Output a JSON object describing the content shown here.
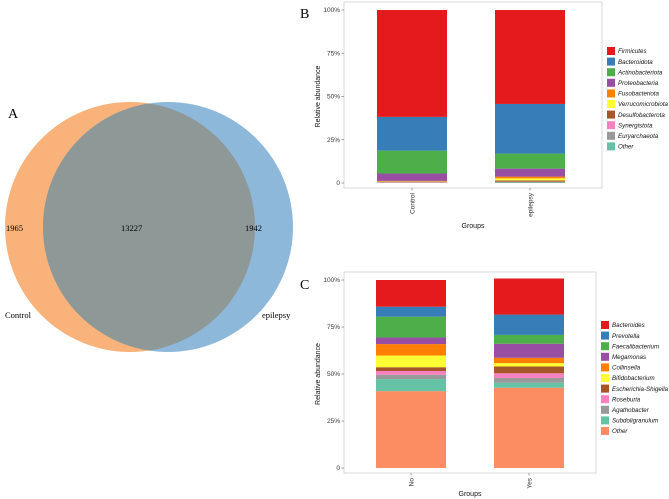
{
  "chart_data": [
    {
      "panel": "A",
      "type": "venn",
      "sets": [
        {
          "name": "Control",
          "unique": 1965,
          "color": "#F8B27A"
        },
        {
          "name": "epilepsy",
          "unique": 1942,
          "color": "#8EB8DA"
        }
      ],
      "shared": 13227,
      "overlap_color": "#8E9896"
    },
    {
      "panel": "B",
      "type": "bar",
      "stacked": true,
      "title": "",
      "xlabel": "Groups",
      "ylabel": "Relative abundance",
      "categories": [
        "Control",
        "epilepsy"
      ],
      "yticks": [
        "0",
        "25%",
        "50%",
        "75%",
        "100%"
      ],
      "ylim": [
        0,
        100
      ],
      "series": [
        {
          "name": "Firmicutes",
          "color": "#E41A1C",
          "values": [
            61.8,
            54.3
          ]
        },
        {
          "name": "Bacteroidota",
          "color": "#377EB8",
          "values": [
            19.5,
            28.7
          ]
        },
        {
          "name": "Actinobacteriota",
          "color": "#4DAF4A",
          "values": [
            13.2,
            8.7
          ]
        },
        {
          "name": "Proteobacteria",
          "color": "#984EA3",
          "values": [
            4.3,
            4.6
          ]
        },
        {
          "name": "Fusobacteriota",
          "color": "#FF7F00",
          "values": [
            0.2,
            1.0
          ]
        },
        {
          "name": "Verrucomicrobiota",
          "color": "#FFFF33",
          "values": [
            0.2,
            1.2
          ]
        },
        {
          "name": "Desulfobacterota",
          "color": "#A65628",
          "values": [
            0.3,
            0.7
          ]
        },
        {
          "name": "Synergistota",
          "color": "#F781BF",
          "values": [
            0.2,
            0.2
          ]
        },
        {
          "name": "Euryarchaeota",
          "color": "#999999",
          "values": [
            0.2,
            0.3
          ]
        },
        {
          "name": "Other",
          "color": "#66C2A5",
          "values": [
            0.1,
            0.3
          ]
        }
      ]
    },
    {
      "panel": "C",
      "type": "bar",
      "stacked": true,
      "title": "",
      "xlabel": "Groups",
      "ylabel": "Relative abundance",
      "categories": [
        "No",
        "Yes"
      ],
      "yticks": [
        "0",
        "25%",
        "50%",
        "75%",
        "100%"
      ],
      "ylim": [
        0,
        100
      ],
      "series": [
        {
          "name": "Bacteroides",
          "color": "#E41A1C",
          "values": [
            14.2,
            19.2
          ]
        },
        {
          "name": "Prevotella",
          "color": "#377EB8",
          "values": [
            5.3,
            10.8
          ]
        },
        {
          "name": "Faecalibacterium",
          "color": "#4DAF4A",
          "values": [
            11.1,
            4.7
          ]
        },
        {
          "name": "Megamonas",
          "color": "#984EA3",
          "values": [
            3.5,
            7.5
          ]
        },
        {
          "name": "Collinsella",
          "color": "#FF7F00",
          "values": [
            6.1,
            2.8
          ]
        },
        {
          "name": "Bifidobacterium",
          "color": "#FFFF33",
          "values": [
            6.2,
            1.8
          ]
        },
        {
          "name": "Escherichia-Shigella",
          "color": "#A65628",
          "values": [
            2.0,
            3.6
          ]
        },
        {
          "name": "Roseburia",
          "color": "#F781BF",
          "values": [
            2.0,
            2.5
          ]
        },
        {
          "name": "Agathobacter",
          "color": "#999999",
          "values": [
            2.3,
            2.5
          ]
        },
        {
          "name": "Subdoligranulum",
          "color": "#66C2A5",
          "values": [
            6.4,
            2.7
          ]
        },
        {
          "name": "Other",
          "color": "#FC8D62",
          "values": [
            40.9,
            42.7
          ]
        }
      ]
    }
  ]
}
